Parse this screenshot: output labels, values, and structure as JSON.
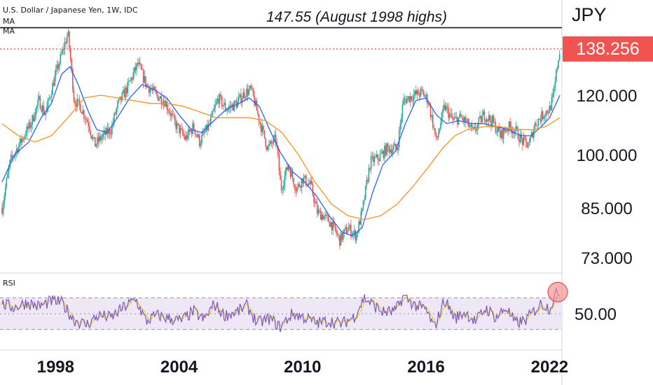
{
  "header": {
    "title": "U.S. Dollar / Japanese Yen, 1W, IDC",
    "ma_label_1": "MA",
    "ma_label_2": "MA",
    "rsi_label": "RSI"
  },
  "annotation": "147.55 (August 1998 highs)",
  "currency": "JPY",
  "last_price": "138.256",
  "colors": {
    "up_candle": "#26a69a",
    "down_candle": "#ef5350",
    "ma_fast": "#2962ff",
    "ma_slow": "#f7931a",
    "rsi_line": "#7e57c2",
    "rsi_signal": "#e0d400",
    "rsi_band": "#ede7f6",
    "price_badge": "#f05350",
    "highlight_circle": "#f48a8a"
  },
  "chart_data": [
    {
      "type": "candlestick",
      "title": "U.S. Dollar / Japanese Yen, 1W, IDC",
      "y_axis": {
        "scale": "log",
        "ticks": [
          73,
          85,
          100,
          120
        ],
        "tick_labels": [
          "73.000",
          "85.000",
          "100.000",
          "120.000"
        ]
      },
      "x_axis": {
        "ticks": [
          1998,
          2004,
          2010,
          2016,
          2022
        ],
        "range": [
          1995.3,
          2022.6
        ]
      },
      "resistance_line": {
        "value": 147.55,
        "label": "147.55 (August 1998 highs)"
      },
      "last_price_line": {
        "value": 138.256
      },
      "close_path": [
        [
          1995.4,
          85
        ],
        [
          1995.8,
          98
        ],
        [
          1996.3,
          104
        ],
        [
          1996.8,
          110
        ],
        [
          1997.2,
          118
        ],
        [
          1997.5,
          113
        ],
        [
          1997.9,
          125
        ],
        [
          1998.3,
          136
        ],
        [
          1998.6,
          145
        ],
        [
          1998.9,
          118
        ],
        [
          1999.2,
          116
        ],
        [
          1999.6,
          110
        ],
        [
          1999.9,
          103
        ],
        [
          2000.3,
          106
        ],
        [
          2000.7,
          108
        ],
        [
          2001.0,
          116
        ],
        [
          2001.5,
          123
        ],
        [
          2002.0,
          132
        ],
        [
          2002.4,
          124
        ],
        [
          2002.9,
          120
        ],
        [
          2003.3,
          118
        ],
        [
          2003.8,
          110
        ],
        [
          2004.3,
          105
        ],
        [
          2004.7,
          109
        ],
        [
          2005.0,
          104
        ],
        [
          2005.5,
          110
        ],
        [
          2005.9,
          119
        ],
        [
          2006.3,
          115
        ],
        [
          2006.8,
          117
        ],
        [
          2007.2,
          121
        ],
        [
          2007.5,
          122
        ],
        [
          2007.9,
          111
        ],
        [
          2008.3,
          102
        ],
        [
          2008.7,
          105
        ],
        [
          2008.95,
          90
        ],
        [
          2009.3,
          97
        ],
        [
          2009.7,
          90
        ],
        [
          2010.0,
          93
        ],
        [
          2010.4,
          91
        ],
        [
          2010.7,
          84
        ],
        [
          2011.0,
          83
        ],
        [
          2011.4,
          81
        ],
        [
          2011.8,
          77
        ],
        [
          2012.2,
          80
        ],
        [
          2012.6,
          78
        ],
        [
          2012.9,
          84
        ],
        [
          2013.3,
          98
        ],
        [
          2013.7,
          99
        ],
        [
          2014.1,
          102
        ],
        [
          2014.6,
          102
        ],
        [
          2014.9,
          118
        ],
        [
          2015.4,
          120
        ],
        [
          2015.8,
          121
        ],
        [
          2016.1,
          118
        ],
        [
          2016.5,
          104
        ],
        [
          2016.9,
          116
        ],
        [
          2017.3,
          111
        ],
        [
          2017.7,
          112
        ],
        [
          2018.0,
          110
        ],
        [
          2018.3,
          107
        ],
        [
          2018.8,
          113
        ],
        [
          2019.2,
          111
        ],
        [
          2019.6,
          106
        ],
        [
          2020.0,
          109
        ],
        [
          2020.3,
          108
        ],
        [
          2020.7,
          104
        ],
        [
          2021.0,
          103
        ],
        [
          2021.3,
          110
        ],
        [
          2021.8,
          114
        ],
        [
          2022.0,
          115
        ],
        [
          2022.2,
          120
        ],
        [
          2022.35,
          130
        ],
        [
          2022.5,
          138.256
        ]
      ],
      "moving_averages": [
        {
          "name": "MA",
          "color": "#2962ff",
          "points": [
            [
              1995.4,
              92
            ],
            [
              1996.0,
              100
            ],
            [
              1996.7,
              104
            ],
            [
              1997.3,
              112
            ],
            [
              1997.8,
              117
            ],
            [
              1998.3,
              128
            ],
            [
              1998.7,
              131
            ],
            [
              1999.1,
              124
            ],
            [
              1999.6,
              114
            ],
            [
              2000.0,
              108
            ],
            [
              2000.5,
              107
            ],
            [
              2001.0,
              112
            ],
            [
              2001.6,
              119
            ],
            [
              2002.2,
              124
            ],
            [
              2002.8,
              122
            ],
            [
              2003.4,
              119
            ],
            [
              2004.0,
              113
            ],
            [
              2004.6,
              108
            ],
            [
              2005.1,
              107
            ],
            [
              2005.7,
              111
            ],
            [
              2006.3,
              115
            ],
            [
              2006.9,
              117
            ],
            [
              2007.4,
              119
            ],
            [
              2007.9,
              116
            ],
            [
              2008.4,
              108
            ],
            [
              2008.9,
              101
            ],
            [
              2009.5,
              95
            ],
            [
              2010.1,
              92
            ],
            [
              2010.7,
              88
            ],
            [
              2011.3,
              83
            ],
            [
              2011.9,
              79
            ],
            [
              2012.4,
              78
            ],
            [
              2012.9,
              80
            ],
            [
              2013.4,
              89
            ],
            [
              2013.9,
              97
            ],
            [
              2014.5,
              101
            ],
            [
              2015.0,
              110
            ],
            [
              2015.5,
              118
            ],
            [
              2016.0,
              119
            ],
            [
              2016.5,
              113
            ],
            [
              2017.0,
              110
            ],
            [
              2017.6,
              111
            ],
            [
              2018.2,
              110
            ],
            [
              2018.8,
              110
            ],
            [
              2019.4,
              109
            ],
            [
              2020.0,
              108
            ],
            [
              2020.6,
              106
            ],
            [
              2021.1,
              106
            ],
            [
              2021.6,
              109
            ],
            [
              2022.0,
              112
            ],
            [
              2022.5,
              120
            ]
          ]
        },
        {
          "name": "MA",
          "color": "#f7931a",
          "points": [
            [
              1995.4,
              110
            ],
            [
              1996.2,
              106
            ],
            [
              1997.0,
              104
            ],
            [
              1997.8,
              106
            ],
            [
              1998.6,
              112
            ],
            [
              1999.4,
              119
            ],
            [
              2000.2,
              120
            ],
            [
              2001.0,
              119
            ],
            [
              2001.8,
              118
            ],
            [
              2002.6,
              117
            ],
            [
              2003.4,
              117
            ],
            [
              2004.2,
              116
            ],
            [
              2005.0,
              114
            ],
            [
              2005.8,
              112
            ],
            [
              2006.6,
              112
            ],
            [
              2007.4,
              112
            ],
            [
              2008.2,
              111
            ],
            [
              2009.0,
              107
            ],
            [
              2009.8,
              100
            ],
            [
              2010.6,
              92
            ],
            [
              2011.4,
              86
            ],
            [
              2012.2,
              83
            ],
            [
              2013.0,
              82
            ],
            [
              2013.8,
              83
            ],
            [
              2014.6,
              86
            ],
            [
              2015.4,
              91
            ],
            [
              2016.2,
              97
            ],
            [
              2016.8,
              102
            ],
            [
              2017.4,
              106
            ],
            [
              2018.0,
              108
            ],
            [
              2018.8,
              109
            ],
            [
              2019.6,
              109
            ],
            [
              2020.4,
              108
            ],
            [
              2021.2,
              108
            ],
            [
              2021.8,
              109
            ],
            [
              2022.5,
              112
            ]
          ]
        }
      ]
    },
    {
      "type": "line",
      "title": "RSI",
      "y_axis": {
        "ticks": [
          50
        ],
        "tick_labels": [
          "50.00"
        ],
        "band": [
          30,
          70
        ]
      },
      "series": [
        {
          "color": "#7e57c2",
          "points": [
            [
              1995.4,
              62
            ],
            [
              1996.0,
              58
            ],
            [
              1996.6,
              64
            ],
            [
              1997.2,
              59
            ],
            [
              1997.8,
              66
            ],
            [
              1998.3,
              64
            ],
            [
              1998.9,
              42
            ],
            [
              1999.5,
              36
            ],
            [
              2000.1,
              48
            ],
            [
              2000.7,
              45
            ],
            [
              2001.3,
              58
            ],
            [
              2001.9,
              68
            ],
            [
              2002.4,
              40
            ],
            [
              2002.9,
              48
            ],
            [
              2003.5,
              44
            ],
            [
              2004.1,
              41
            ],
            [
              2004.7,
              53
            ],
            [
              2005.2,
              42
            ],
            [
              2005.7,
              62
            ],
            [
              2006.2,
              48
            ],
            [
              2006.8,
              52
            ],
            [
              2007.3,
              60
            ],
            [
              2007.8,
              38
            ],
            [
              2008.4,
              44
            ],
            [
              2008.9,
              33
            ],
            [
              2009.5,
              50
            ],
            [
              2010.1,
              45
            ],
            [
              2010.7,
              38
            ],
            [
              2011.3,
              41
            ],
            [
              2011.9,
              37
            ],
            [
              2012.5,
              46
            ],
            [
              2013.0,
              70
            ],
            [
              2013.4,
              62
            ],
            [
              2013.9,
              52
            ],
            [
              2014.5,
              53
            ],
            [
              2014.9,
              72
            ],
            [
              2015.5,
              60
            ],
            [
              2016.0,
              55
            ],
            [
              2016.4,
              32
            ],
            [
              2016.9,
              68
            ],
            [
              2017.4,
              44
            ],
            [
              2017.9,
              52
            ],
            [
              2018.4,
              40
            ],
            [
              2018.9,
              57
            ],
            [
              2019.4,
              45
            ],
            [
              2019.9,
              58
            ],
            [
              2020.3,
              38
            ],
            [
              2020.8,
              41
            ],
            [
              2021.2,
              52
            ],
            [
              2021.6,
              63
            ],
            [
              2022.0,
              57
            ],
            [
              2022.3,
              74
            ],
            [
              2022.5,
              80
            ]
          ]
        }
      ]
    }
  ]
}
